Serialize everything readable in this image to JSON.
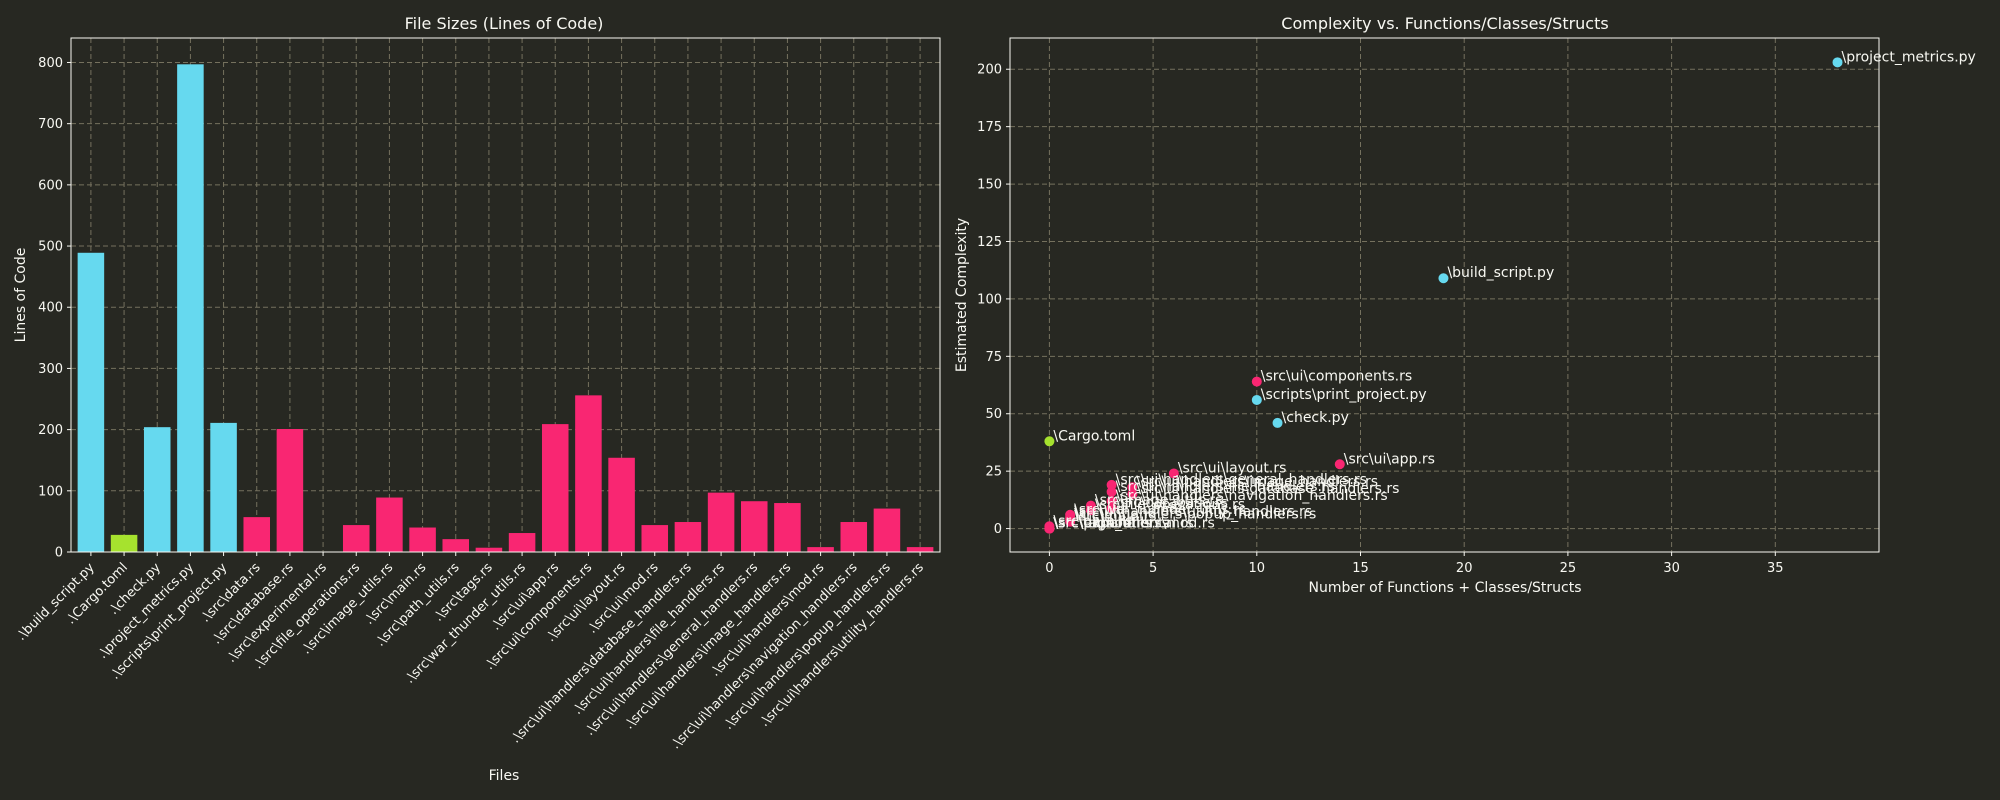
{
  "colors": {
    "background": "#272822",
    "text": "#f8f8f2",
    "grid": "#75715e",
    "python": "#66d9ef",
    "toml": "#a6e22e",
    "rust": "#f92672"
  },
  "chart_data": [
    {
      "type": "bar",
      "title": "File Sizes (Lines of Code)",
      "xlabel": "Files",
      "ylabel": "Lines of Code",
      "ylim": [
        0,
        840
      ],
      "yticks": [
        0,
        100,
        200,
        300,
        400,
        500,
        600,
        700,
        800
      ],
      "grid": true,
      "categories": [
        ".\\build_script.py",
        ".\\Cargo.toml",
        ".\\check.py",
        ".\\project_metrics.py",
        ".\\scripts\\print_project.py",
        ".\\src\\data.rs",
        ".\\src\\database.rs",
        ".\\src\\experimental.rs",
        ".\\src\\file_operations.rs",
        ".\\src\\image_utils.rs",
        ".\\src\\main.rs",
        ".\\src\\path_utils.rs",
        ".\\src\\tags.rs",
        ".\\src\\war_thunder_utils.rs",
        ".\\src\\ui\\app.rs",
        ".\\src\\ui\\components.rs",
        ".\\src\\ui\\layout.rs",
        ".\\src\\ui\\mod.rs",
        ".\\src\\ui\\handlers\\database_handlers.rs",
        ".\\src\\ui\\handlers\\file_handlers.rs",
        ".\\src\\ui\\handlers\\general_handlers.rs",
        ".\\src\\ui\\handlers\\image_handlers.rs",
        ".\\src\\ui\\handlers\\mod.rs",
        ".\\src\\ui\\handlers\\navigation_handlers.rs",
        ".\\src\\ui\\handlers\\popup_handlers.rs",
        ".\\src\\ui\\handlers\\utility_handlers.rs"
      ],
      "values": [
        489,
        28,
        204,
        797,
        211,
        57,
        201,
        0,
        44,
        89,
        40,
        21,
        7,
        31,
        209,
        256,
        154,
        44,
        49,
        97,
        83,
        80,
        8,
        49,
        71,
        8
      ],
      "bar_colors": [
        "python",
        "toml",
        "python",
        "python",
        "python",
        "rust",
        "rust",
        "rust",
        "rust",
        "rust",
        "rust",
        "rust",
        "rust",
        "rust",
        "rust",
        "rust",
        "rust",
        "rust",
        "rust",
        "rust",
        "rust",
        "rust",
        "rust",
        "rust",
        "rust",
        "rust"
      ]
    },
    {
      "type": "scatter",
      "title": "Complexity vs. Functions/Classes/Structs",
      "xlabel": "Number of Functions + Classes/Structs",
      "ylabel": "Estimated Complexity",
      "xlim": [
        -1.9,
        40
      ],
      "ylim": [
        -10.2,
        213.6
      ],
      "xticks": [
        0,
        5,
        10,
        15,
        20,
        25,
        30,
        35
      ],
      "yticks": [
        0,
        25,
        50,
        75,
        100,
        125,
        150,
        175,
        200
      ],
      "grid": true,
      "points": [
        {
          "label": "\\project_metrics.py",
          "x": 38,
          "y": 203,
          "color": "python"
        },
        {
          "label": "\\build_script.py",
          "x": 19,
          "y": 109,
          "color": "python"
        },
        {
          "label": "\\src\\ui\\components.rs",
          "x": 10,
          "y": 64,
          "color": "rust"
        },
        {
          "label": "\\scripts\\print_project.py",
          "x": 10,
          "y": 56,
          "color": "python"
        },
        {
          "label": "\\check.py",
          "x": 11,
          "y": 46,
          "color": "python"
        },
        {
          "label": "\\Cargo.toml",
          "x": 0,
          "y": 38,
          "color": "toml"
        },
        {
          "label": "\\src\\ui\\app.rs",
          "x": 14,
          "y": 28,
          "color": "rust"
        },
        {
          "label": "\\src\\ui\\layout.rs",
          "x": 6,
          "y": 24,
          "color": "rust"
        },
        {
          "label": "\\src\\ui\\handlers\\general_handlers.rs",
          "x": 3,
          "y": 19,
          "color": "rust"
        },
        {
          "label": "\\src\\ui\\handlers\\image_handlers.rs",
          "x": 4,
          "y": 18,
          "color": "rust"
        },
        {
          "label": "\\src\\ui\\handlers\\file_handlers.rs",
          "x": 3,
          "y": 16,
          "color": "rust"
        },
        {
          "label": "\\src\\ui\\handlers\\database_handlers.rs",
          "x": 4,
          "y": 15,
          "color": "rust"
        },
        {
          "label": "\\src\\ui\\handlers\\navigation_handlers.rs",
          "x": 3,
          "y": 12,
          "color": "rust"
        },
        {
          "label": "\\src\\image_utils.rs",
          "x": 2,
          "y": 10,
          "color": "rust"
        },
        {
          "label": "\\src\\database.rs",
          "x": 3,
          "y": 9,
          "color": "rust"
        },
        {
          "label": "\\src\\file_operations.rs",
          "x": 2,
          "y": 8,
          "color": "rust"
        },
        {
          "label": "\\src\\war_thunder_utils.rs",
          "x": 1,
          "y": 6,
          "color": "rust"
        },
        {
          "label": "\\src\\ui\\handlers\\utility_handlers.rs",
          "x": 1,
          "y": 5,
          "color": "rust"
        },
        {
          "label": "\\src\\ui\\handlers\\popup_handlers.rs",
          "x": 1,
          "y": 4,
          "color": "rust"
        },
        {
          "label": "\\src\\main.rs",
          "x": 1,
          "y": 3,
          "color": "rust"
        },
        {
          "label": "\\src\\data.rs",
          "x": 0,
          "y": 1,
          "color": "rust"
        },
        {
          "label": "\\src\\path_utils.rs",
          "x": 0,
          "y": 0,
          "color": "rust"
        },
        {
          "label": "\\src\\tags.rs",
          "x": 0,
          "y": 0,
          "color": "rust"
        },
        {
          "label": "\\src\\experimental.rs",
          "x": 0,
          "y": 0,
          "color": "rust"
        },
        {
          "label": "\\src\\ui\\mod.rs",
          "x": 0,
          "y": 0,
          "color": "rust"
        },
        {
          "label": "\\src\\ui\\handlers\\mod.rs",
          "x": 0,
          "y": 0,
          "color": "rust"
        }
      ]
    }
  ]
}
